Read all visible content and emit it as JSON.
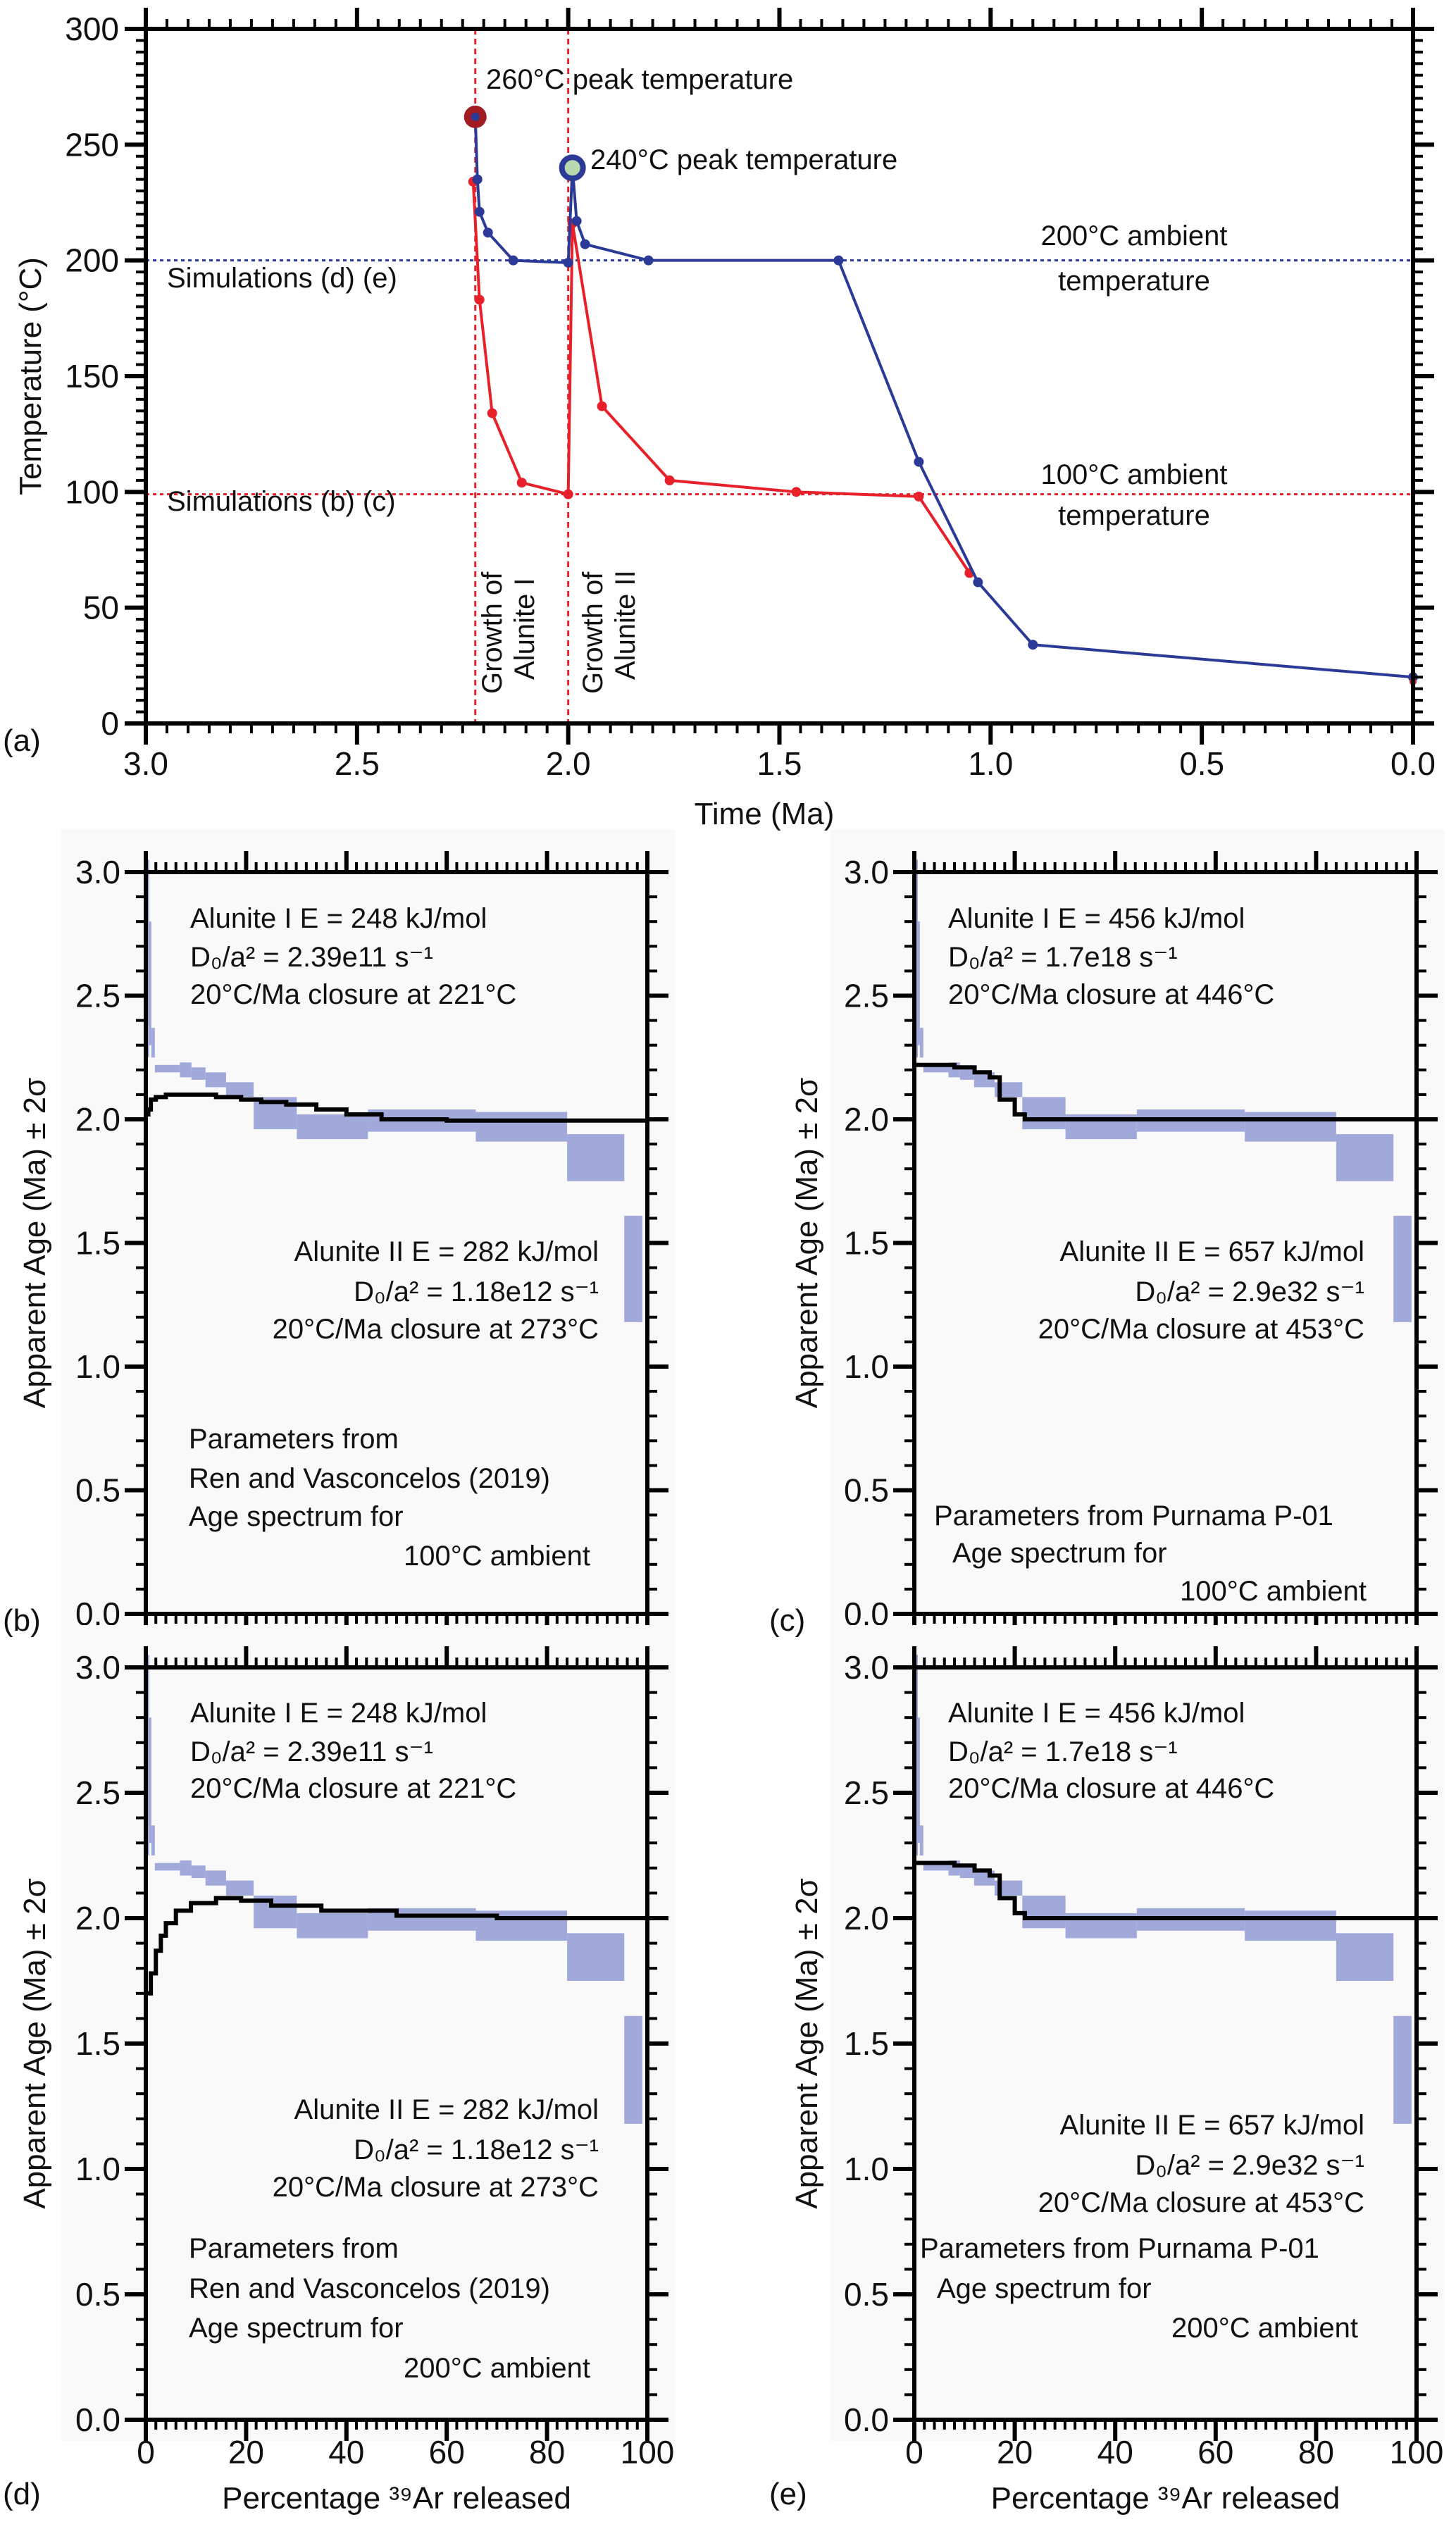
{
  "colors": {
    "blue_series": "#2b3a96",
    "red_series": "#e8202a",
    "measured_fill": "#a0a9d9",
    "model_line": "#000000",
    "panel_bg": "#f9f9f9"
  },
  "chart_data": [
    {
      "panel": "(a)",
      "type": "line",
      "xlabel": "Time (Ma)",
      "ylabel": "Temperature (°C)",
      "xlim": [
        3.0,
        0.0
      ],
      "ylim": [
        0,
        300
      ],
      "xticks": [
        "3.0",
        "2.5",
        "2.0",
        "1.5",
        "1.0",
        "0.5",
        "0.0"
      ],
      "yticks": [
        "0",
        "50",
        "100",
        "150",
        "200",
        "250",
        "300"
      ],
      "series": [
        {
          "color": "#2b3a96",
          "x": [
            2.22,
            2.215,
            2.21,
            2.19,
            2.13,
            2.0,
            1.99,
            1.98,
            1.96,
            1.81,
            1.36,
            1.17,
            1.03,
            0.9,
            0.0
          ],
          "y": [
            262,
            235,
            221,
            212,
            200,
            199,
            240,
            217,
            207,
            200,
            200,
            113,
            61,
            34,
            20
          ]
        },
        {
          "color": "#e8202a",
          "x": [
            2.225,
            2.21,
            2.18,
            2.11,
            2.0,
            1.99,
            1.92,
            1.76,
            1.46,
            1.17,
            1.05
          ],
          "y": [
            234,
            183,
            134,
            104,
            99,
            216,
            137,
            105,
            100,
            98,
            65
          ]
        }
      ],
      "reference_lines": [
        {
          "orientation": "horizontal",
          "value": 200,
          "color": "#2b3a96"
        },
        {
          "orientation": "horizontal",
          "value": 99,
          "color": "#e8202a"
        },
        {
          "orientation": "vertical",
          "value": 2.22,
          "color": "#e8202a"
        },
        {
          "orientation": "vertical",
          "value": 2.0,
          "color": "#e8202a"
        }
      ],
      "peak_markers": [
        {
          "x": 2.22,
          "y": 262,
          "color": "#a11b22"
        },
        {
          "x": 1.99,
          "y": 240,
          "color": "#2b3a96"
        }
      ],
      "annotations": {
        "peak_260": "260°C peak temperature",
        "peak_240": "240°C peak temperature",
        "ambient_200_l1": "200°C ambient",
        "ambient_200_l2": "temperature",
        "ambient_100_l1": "100°C ambient",
        "ambient_100_l2": "temperature",
        "sim_de": "Simulations (d) (e)",
        "sim_bc": "Simulations (b) (c)",
        "growth1_l1": "Growth of",
        "growth1_l2": "Alunite I",
        "growth2_l1": "Growth of",
        "growth2_l2": "Alunite II"
      }
    },
    {
      "panel": "(b)",
      "type": "step",
      "xlabel": "Percentage ³⁹Ar released",
      "ylabel": "Apparent Age (Ma) ± 2σ",
      "xlim": [
        0,
        100
      ],
      "ylim": [
        0,
        3.0
      ],
      "xticks": [
        "0",
        "20",
        "40",
        "60",
        "80",
        "100"
      ],
      "yticks": [
        "0.0",
        "0.5",
        "1.0",
        "1.5",
        "2.0",
        "2.5",
        "3.0"
      ],
      "measured_spectrum": [
        [
          0,
          0.7,
          2.25,
          3.05
        ],
        [
          0.7,
          1.1,
          2.3,
          2.8
        ],
        [
          1.1,
          1.8,
          2.25,
          2.37
        ],
        [
          1.8,
          6.8,
          2.19,
          2.22
        ],
        [
          6.8,
          9.1,
          2.17,
          2.23
        ],
        [
          9.1,
          11.9,
          2.16,
          2.21
        ],
        [
          11.9,
          16,
          2.13,
          2.19
        ],
        [
          16,
          21.5,
          2.09,
          2.15
        ],
        [
          21.5,
          30.1,
          1.96,
          2.09
        ],
        [
          30.1,
          44.3,
          1.92,
          2.02
        ],
        [
          44.3,
          65.8,
          1.95,
          2.04
        ],
        [
          65.8,
          84,
          1.91,
          2.03
        ],
        [
          84,
          95.4,
          1.75,
          1.94
        ],
        [
          95.4,
          99,
          1.18,
          1.61
        ]
      ],
      "model": {
        "x": [
          0,
          0.5,
          1,
          2,
          4,
          8,
          14,
          19,
          23,
          28,
          34,
          40,
          47,
          60,
          100
        ],
        "y": [
          2.02,
          2.04,
          2.08,
          2.09,
          2.1,
          2.1,
          2.09,
          2.08,
          2.07,
          2.06,
          2.04,
          2.02,
          2.0,
          1.995,
          1.995
        ]
      },
      "text": {
        "a1": "Alunite I   E = 248 kJ/mol",
        "a2": "D₀/a² = 2.39e11 s⁻¹",
        "a3": "20°C/Ma closure at 221°C",
        "b1": "Alunite II   E = 282 kJ/mol",
        "b2": "D₀/a² = 1.18e12 s⁻¹",
        "b3": "20°C/Ma closure at 273°C",
        "p": [
          "Parameters from",
          "Ren and Vasconcelos (2019)",
          "Age spectrum for",
          "100°C ambient"
        ]
      }
    },
    {
      "panel": "(c)",
      "type": "step",
      "xlabel": "Percentage ³⁹Ar released",
      "ylabel": "Apparent Age (Ma) ± 2σ",
      "xlim": [
        0,
        100
      ],
      "ylim": [
        0,
        3.0
      ],
      "xticks": [
        "0",
        "20",
        "40",
        "60",
        "80",
        "100"
      ],
      "yticks": [
        "0.0",
        "0.5",
        "1.0",
        "1.5",
        "2.0",
        "2.5",
        "3.0"
      ],
      "measured_spectrum": [
        [
          0,
          0.7,
          2.25,
          3.05
        ],
        [
          0.7,
          1.1,
          2.3,
          2.8
        ],
        [
          1.1,
          1.8,
          2.25,
          2.37
        ],
        [
          1.8,
          6.8,
          2.19,
          2.22
        ],
        [
          6.8,
          9.1,
          2.17,
          2.23
        ],
        [
          9.1,
          11.9,
          2.16,
          2.21
        ],
        [
          11.9,
          16,
          2.13,
          2.19
        ],
        [
          16,
          21.5,
          2.09,
          2.15
        ],
        [
          21.5,
          30.1,
          1.96,
          2.09
        ],
        [
          30.1,
          44.3,
          1.92,
          2.02
        ],
        [
          44.3,
          65.8,
          1.95,
          2.04
        ],
        [
          65.8,
          84,
          1.91,
          2.03
        ],
        [
          84,
          95.4,
          1.75,
          1.94
        ],
        [
          95.4,
          99,
          1.18,
          1.61
        ]
      ],
      "model": {
        "x": [
          0,
          8,
          12,
          15,
          17,
          20,
          22,
          100
        ],
        "y": [
          2.22,
          2.21,
          2.19,
          2.17,
          2.08,
          2.02,
          2.0,
          2.0
        ]
      },
      "text": {
        "a1": "Alunite I  E = 456 kJ/mol",
        "a2": "D₀/a² = 1.7e18 s⁻¹",
        "a3": "20°C/Ma closure at 446°C",
        "b1": "Alunite II  E = 657 kJ/mol",
        "b2": "D₀/a² = 2.9e32 s⁻¹",
        "b3": "20°C/Ma closure at 453°C",
        "p": [
          "Parameters from Purnama P-01",
          "Age spectrum for",
          "100°C ambient"
        ]
      }
    },
    {
      "panel": "(d)",
      "type": "step",
      "xlabel": "Percentage ³⁹Ar released",
      "ylabel": "Apparent Age (Ma) ± 2σ",
      "xlim": [
        0,
        100
      ],
      "ylim": [
        0,
        3.0
      ],
      "xticks": [
        "0",
        "20",
        "40",
        "60",
        "80",
        "100"
      ],
      "yticks": [
        "0.0",
        "0.5",
        "1.0",
        "1.5",
        "2.0",
        "2.5",
        "3.0"
      ],
      "measured_spectrum": [
        [
          0,
          0.7,
          2.25,
          3.05
        ],
        [
          0.7,
          1.1,
          2.3,
          2.8
        ],
        [
          1.1,
          1.8,
          2.25,
          2.37
        ],
        [
          1.8,
          6.8,
          2.19,
          2.22
        ],
        [
          6.8,
          9.1,
          2.17,
          2.23
        ],
        [
          9.1,
          11.9,
          2.16,
          2.21
        ],
        [
          11.9,
          16,
          2.13,
          2.19
        ],
        [
          16,
          21.5,
          2.09,
          2.15
        ],
        [
          21.5,
          30.1,
          1.96,
          2.09
        ],
        [
          30.1,
          44.3,
          1.92,
          2.02
        ],
        [
          44.3,
          65.8,
          1.95,
          2.04
        ],
        [
          65.8,
          84,
          1.91,
          2.03
        ],
        [
          84,
          95.4,
          1.75,
          1.94
        ],
        [
          95.4,
          99,
          1.18,
          1.61
        ]
      ],
      "model": {
        "x": [
          0,
          1,
          2,
          3,
          4,
          6,
          9,
          14,
          19,
          25,
          35,
          50,
          70,
          100
        ],
        "y": [
          1.7,
          1.78,
          1.87,
          1.93,
          1.98,
          2.03,
          2.06,
          2.08,
          2.07,
          2.05,
          2.03,
          2.01,
          2.0,
          2.0
        ]
      },
      "text": {
        "a1": "Alunite I  E = 248 kJ/mol",
        "a2": "D₀/a² = 2.39e11 s⁻¹",
        "a3": "20°C/Ma closure at 221°C",
        "b1": "Alunite II   E = 282 kJ/mol",
        "b2": "D₀/a² = 1.18e12 s⁻¹",
        "b3": "20°C/Ma closure at 273°C",
        "p": [
          "Parameters from",
          "Ren and Vasconcelos (2019)",
          "Age spectrum for",
          "200°C ambient"
        ]
      }
    },
    {
      "panel": "(e)",
      "type": "step",
      "xlabel": "Percentage ³⁹Ar released",
      "ylabel": "Apparent Age (Ma) ± 2σ",
      "xlim": [
        0,
        100
      ],
      "ylim": [
        0,
        3.0
      ],
      "xticks": [
        "0",
        "20",
        "40",
        "60",
        "80",
        "100"
      ],
      "yticks": [
        "0.0",
        "0.5",
        "1.0",
        "1.5",
        "2.0",
        "2.5",
        "3.0"
      ],
      "measured_spectrum": [
        [
          0,
          0.7,
          2.25,
          3.05
        ],
        [
          0.7,
          1.1,
          2.3,
          2.8
        ],
        [
          1.1,
          1.8,
          2.25,
          2.37
        ],
        [
          1.8,
          6.8,
          2.19,
          2.22
        ],
        [
          6.8,
          9.1,
          2.17,
          2.23
        ],
        [
          9.1,
          11.9,
          2.16,
          2.21
        ],
        [
          11.9,
          16,
          2.13,
          2.19
        ],
        [
          16,
          21.5,
          2.09,
          2.15
        ],
        [
          21.5,
          30.1,
          1.96,
          2.09
        ],
        [
          30.1,
          44.3,
          1.92,
          2.02
        ],
        [
          44.3,
          65.8,
          1.95,
          2.04
        ],
        [
          65.8,
          84,
          1.91,
          2.03
        ],
        [
          84,
          95.4,
          1.75,
          1.94
        ],
        [
          95.4,
          99,
          1.18,
          1.61
        ]
      ],
      "model": {
        "x": [
          0,
          8,
          12,
          15,
          17,
          20,
          22,
          100
        ],
        "y": [
          2.22,
          2.21,
          2.19,
          2.17,
          2.08,
          2.02,
          2.0,
          2.0
        ]
      },
      "text": {
        "a1": "Alunite I  E = 456 kJ/mol",
        "a2": "D₀/a² = 1.7e18 s⁻¹",
        "a3": "20°C/Ma closure at 446°C",
        "b1": "Alunite II  E = 657 kJ/mol",
        "b2": "D₀/a² = 2.9e32 s⁻¹",
        "b3": "20°C/Ma closure at 453°C",
        "p": [
          "Parameters from Purnama P-01",
          "Age spectrum for",
          "200°C ambient"
        ]
      }
    }
  ]
}
